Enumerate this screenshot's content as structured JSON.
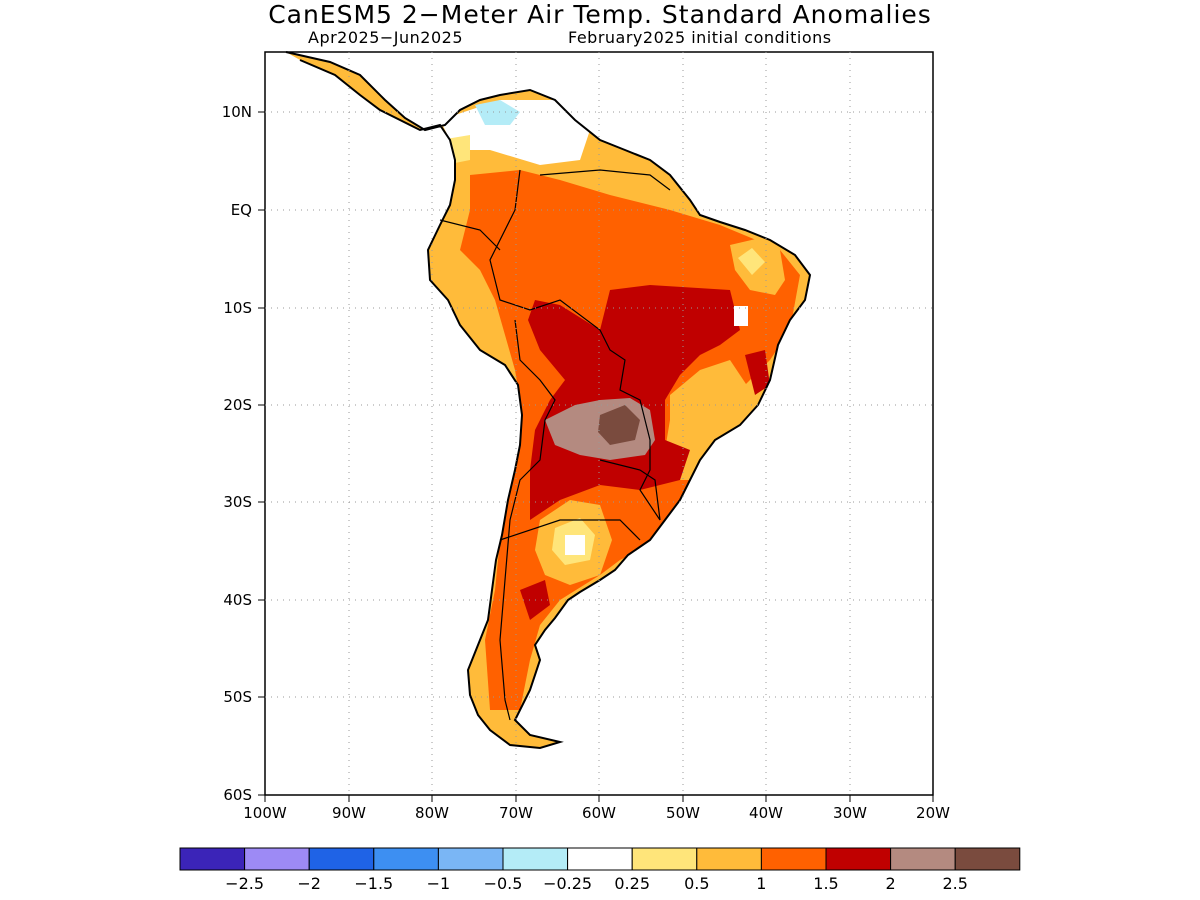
{
  "header": {
    "title": "CanESM5 2−Meter Air Temp. Standard Anomalies",
    "period": "Apr2025−Jun2025",
    "init": "February2025 initial conditions"
  },
  "map": {
    "region": "South America",
    "lat_ticks": [
      "10N",
      "EQ",
      "10S",
      "20S",
      "30S",
      "40S",
      "50S",
      "60S"
    ],
    "lon_ticks": [
      "100W",
      "90W",
      "80W",
      "70W",
      "60W",
      "50W",
      "40W",
      "30W",
      "20W"
    ],
    "grid": "dotted"
  },
  "colorbar": {
    "colors": [
      "#3b24b8",
      "#9d8af5",
      "#1f63e6",
      "#3d8ff2",
      "#7ab6f5",
      "#b4ecf7",
      "#ffffff",
      "#ffe57a",
      "#ffbb3a",
      "#ff6100",
      "#c00000",
      "#b48a80",
      "#7a4b3e"
    ],
    "labels": [
      "−2.5",
      "−2",
      "−1.5",
      "−1",
      "−0.5",
      "−0.25",
      "0.25",
      "0.5",
      "1",
      "1.5",
      "2",
      "2.5"
    ]
  }
}
